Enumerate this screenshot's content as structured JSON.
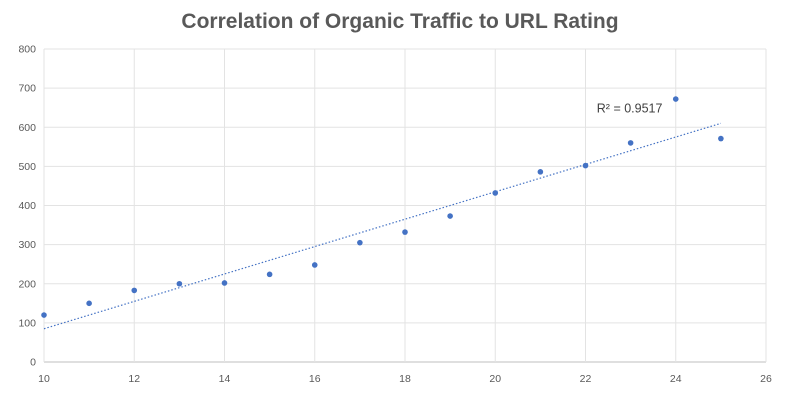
{
  "chart_data": {
    "type": "scatter",
    "title": "Correlation of Organic Traffic to URL Rating",
    "xlabel": "",
    "ylabel": "",
    "xlim": [
      10,
      26
    ],
    "ylim": [
      0,
      800
    ],
    "x_ticks": [
      10,
      12,
      14,
      16,
      18,
      20,
      22,
      24,
      26
    ],
    "y_ticks": [
      0,
      100,
      200,
      300,
      400,
      500,
      600,
      700,
      800
    ],
    "grid": true,
    "legend": "none",
    "series": [
      {
        "x": [
          10,
          11,
          12,
          13,
          14,
          15,
          16,
          17,
          18,
          19,
          20,
          21,
          22,
          23,
          24,
          25
        ],
        "y": [
          120,
          150,
          183,
          200,
          202,
          224,
          248,
          305,
          332,
          373,
          432,
          486,
          502,
          560,
          672,
          571
        ],
        "color": "#4472c4"
      }
    ],
    "trendline": {
      "type": "linear",
      "x": [
        10,
        25
      ],
      "y": [
        85,
        610
      ],
      "style": "dotted",
      "color": "#4472c4",
      "label": "R² = 0.9517"
    }
  }
}
